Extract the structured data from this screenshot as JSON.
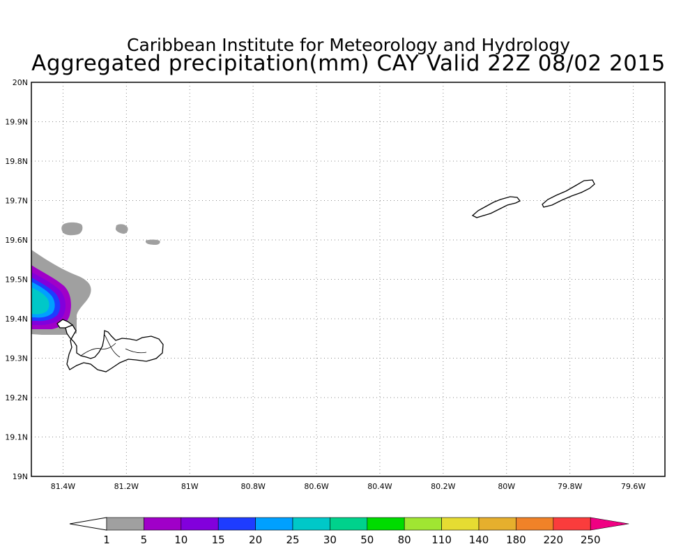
{
  "header": {
    "title": "Caribbean Institute for Meteorology and Hydrology",
    "subtitle": "Aggregated precipitation(mm) CAY Valid 22Z 08/02 2015"
  },
  "map": {
    "lon_range": [
      -81.5,
      -79.5
    ],
    "lat_range": [
      19.0,
      20.0
    ],
    "grid": "dotted",
    "lat_ticks": [
      {
        "value": 20.0,
        "label": "20N"
      },
      {
        "value": 19.9,
        "label": "19.9N"
      },
      {
        "value": 19.8,
        "label": "19.8N"
      },
      {
        "value": 19.7,
        "label": "19.7N"
      },
      {
        "value": 19.6,
        "label": "19.6N"
      },
      {
        "value": 19.5,
        "label": "19.5N"
      },
      {
        "value": 19.4,
        "label": "19.4N"
      },
      {
        "value": 19.3,
        "label": "19.3N"
      },
      {
        "value": 19.2,
        "label": "19.2N"
      },
      {
        "value": 19.1,
        "label": "19.1N"
      },
      {
        "value": 19.0,
        "label": "19N"
      }
    ],
    "lon_ticks": [
      {
        "value": -81.4,
        "label": "81.4W"
      },
      {
        "value": -81.2,
        "label": "81.2W"
      },
      {
        "value": -81.0,
        "label": "81W"
      },
      {
        "value": -80.8,
        "label": "80.8W"
      },
      {
        "value": -80.6,
        "label": "80.6W"
      },
      {
        "value": -80.4,
        "label": "80.4W"
      },
      {
        "value": -80.2,
        "label": "80.2W"
      },
      {
        "value": -80.0,
        "label": "80W"
      },
      {
        "value": -79.8,
        "label": "79.8W"
      },
      {
        "value": -79.6,
        "label": "79.6W"
      }
    ],
    "features": [
      {
        "name": "precip-field-west",
        "max_class": "25",
        "location": "west edge near 19.4N"
      },
      {
        "name": "precip-light-patches",
        "class": "1",
        "location": "near 19.63N"
      }
    ],
    "land_color": "#ffffff",
    "coast_color": "#000000"
  },
  "colorbar": {
    "thresholds": [
      "1",
      "5",
      "10",
      "15",
      "20",
      "25",
      "30",
      "50",
      "80",
      "110",
      "140",
      "180",
      "220",
      "250"
    ],
    "colors": [
      "#a0a0a0",
      "#a000c8",
      "#8200dc",
      "#1e3cff",
      "#00a0ff",
      "#00c8c8",
      "#00d28c",
      "#00dc00",
      "#a0e632",
      "#e6dc32",
      "#e6af2d",
      "#f08228",
      "#fa3c3c",
      "#f00082"
    ],
    "low_end_color": "#ffffff"
  }
}
